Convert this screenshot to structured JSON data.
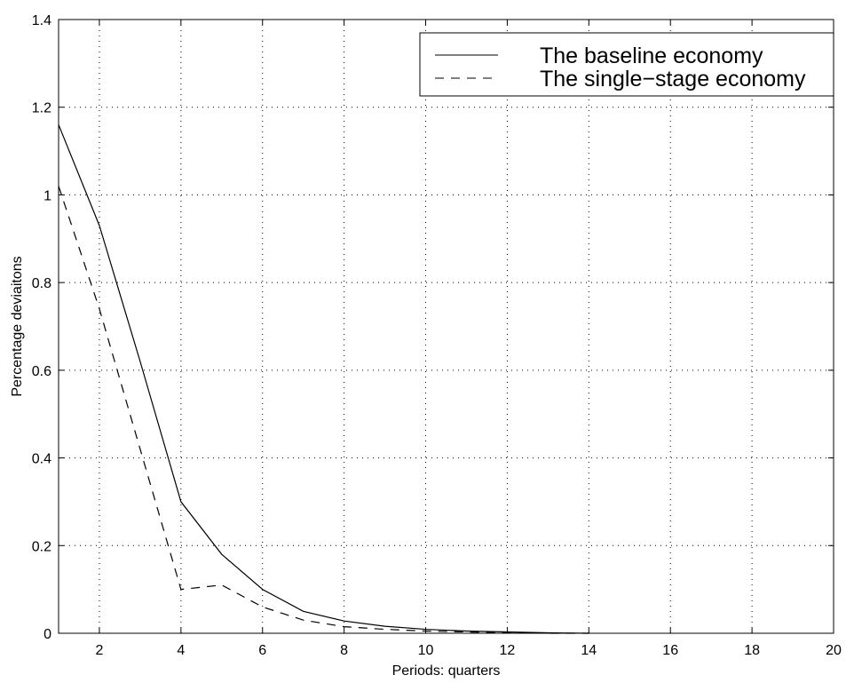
{
  "chart_data": {
    "type": "line",
    "xlabel": "Periods: quarters",
    "ylabel": "Percentage deviaitons",
    "xlim": [
      1,
      20
    ],
    "ylim": [
      0,
      1.4
    ],
    "xticks": [
      2,
      4,
      6,
      8,
      10,
      12,
      14,
      16,
      18,
      20
    ],
    "yticks": [
      0,
      0.2,
      0.4,
      0.6,
      0.8,
      1,
      1.2,
      1.4
    ],
    "xtick_labels": [
      "2",
      "4",
      "6",
      "8",
      "10",
      "12",
      "14",
      "16",
      "18",
      "20"
    ],
    "ytick_labels": [
      "0",
      "0.2",
      "0.4",
      "0.6",
      "0.8",
      "1",
      "1.2",
      "1.4"
    ],
    "grid": true,
    "legend_position": "top-right",
    "x": [
      1,
      2,
      3,
      4,
      5,
      6,
      7,
      8,
      9,
      10,
      11,
      12,
      13,
      14
    ],
    "series": [
      {
        "name": "The baseline economy",
        "style": "solid",
        "color": "#000000",
        "values": [
          1.16,
          0.93,
          0.62,
          0.3,
          0.18,
          0.1,
          0.05,
          0.028,
          0.016,
          0.009,
          0.005,
          0.003,
          0.001,
          0.0
        ]
      },
      {
        "name": "The single−stage economy",
        "style": "dashed",
        "color": "#000000",
        "values": [
          1.02,
          0.74,
          0.42,
          0.1,
          0.11,
          0.06,
          0.03,
          0.015,
          0.009,
          0.005,
          0.003,
          0.001,
          0.0,
          0.0
        ]
      }
    ]
  }
}
